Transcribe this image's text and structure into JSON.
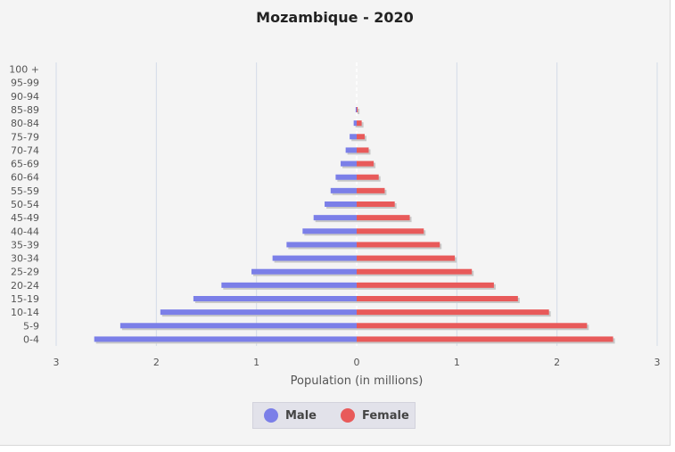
{
  "colors": {
    "male": "#7b7fe8",
    "female": "#e85a5a",
    "grid": "#d4dbe8",
    "background": "#f4f4f4"
  },
  "chart_data": {
    "type": "bar",
    "orientation": "horizontal",
    "title": "Mozambique - 2020",
    "xlabel": "Population (in millions)",
    "ylabel": "",
    "xlim": [
      -3,
      3
    ],
    "x_ticks": [
      -3,
      -2,
      -1,
      0,
      1,
      2,
      3
    ],
    "x_tick_labels": [
      "3",
      "2",
      "1",
      "0",
      "1",
      "2",
      "3"
    ],
    "categories": [
      "0-4",
      "5-9",
      "10-14",
      "15-19",
      "20-24",
      "25-29",
      "30-34",
      "35-39",
      "40-44",
      "45-49",
      "50-54",
      "55-59",
      "60-64",
      "65-69",
      "70-74",
      "75-79",
      "80-84",
      "85-89",
      "90-94",
      "95-99",
      "100 +"
    ],
    "series": [
      {
        "name": "Male",
        "values": [
          2.62,
          2.36,
          1.96,
          1.63,
          1.35,
          1.05,
          0.84,
          0.7,
          0.54,
          0.43,
          0.32,
          0.26,
          0.21,
          0.16,
          0.11,
          0.07,
          0.03,
          0.01,
          0.0,
          0.0,
          0.0
        ]
      },
      {
        "name": "Female",
        "values": [
          2.56,
          2.3,
          1.92,
          1.61,
          1.37,
          1.15,
          0.98,
          0.83,
          0.67,
          0.53,
          0.38,
          0.28,
          0.22,
          0.17,
          0.12,
          0.08,
          0.05,
          0.01,
          0.0,
          0.0,
          0.0
        ]
      }
    ],
    "grid": true,
    "legend_position": "bottom-center"
  },
  "legend": {
    "male_label": "Male",
    "female_label": "Female"
  }
}
